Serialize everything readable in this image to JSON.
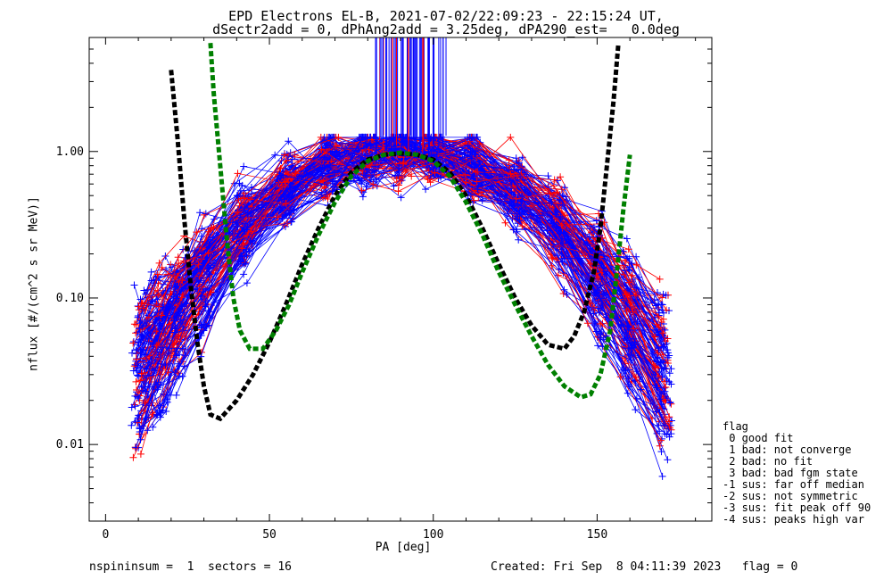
{
  "title_line1": "EPD Electrons EL-B, 2021-07-02/22:09:23 - 22:15:24 UT,",
  "title_line2": "dSectr2add = 0, dPhAng2add = 3.25deg, dPA290_est=   0.0deg",
  "footer_left": "nspininsum =  1  sectors = 16",
  "footer_right": "Created: Fri Sep  8 04:11:39 2023   flag = 0",
  "flag_legend": {
    "title": "flag",
    "items": [
      " 0 good fit",
      " 1 bad: not converge",
      " 2 bad: no fit",
      " 3 bad: bad fgm state",
      "-1 sus: far off median",
      "-2 sus: not symmetric",
      "-3 sus: fit peak off 90",
      "-4 sus: peaks high var"
    ]
  },
  "chart_data": {
    "type": "line",
    "xlabel": "PA [deg]",
    "ylabel": "nflux [#/(cm^2 s sr MeV)]",
    "xlim": [
      -5,
      185
    ],
    "ylim": [
      0.003,
      6.0
    ],
    "yscale": "log",
    "xticks": [
      0,
      50,
      100,
      150
    ],
    "xtick_labels": [
      "0",
      "50",
      "100",
      "150"
    ],
    "yticks": [
      0.01,
      0.1,
      1.0
    ],
    "ytick_labels": [
      "0.01",
      "0.10",
      "1.00"
    ],
    "grid": false,
    "colors": {
      "blue": "#0000ff",
      "red": "#ff0000",
      "black_fit": "#000000",
      "green_fit": "#00ff00"
    },
    "series": [
      {
        "color": "black",
        "style": "dotted-thick",
        "x": [
          20,
          22,
          24,
          26,
          28,
          30,
          32,
          35,
          40,
          45,
          50,
          55,
          60,
          65,
          70,
          75,
          80,
          85,
          90,
          95,
          100,
          105,
          110,
          115,
          120,
          125,
          130,
          135,
          140,
          143,
          146,
          149,
          151,
          153,
          155,
          156.5
        ],
        "y": [
          3.6,
          1.2,
          0.35,
          0.12,
          0.05,
          0.025,
          0.016,
          0.015,
          0.02,
          0.03,
          0.05,
          0.09,
          0.17,
          0.3,
          0.5,
          0.72,
          0.88,
          0.95,
          0.97,
          0.95,
          0.88,
          0.72,
          0.5,
          0.3,
          0.17,
          0.1,
          0.065,
          0.048,
          0.045,
          0.055,
          0.08,
          0.15,
          0.3,
          0.8,
          2.2,
          5.5
        ]
      },
      {
        "color": "green",
        "style": "dotted-thick",
        "x": [
          32,
          33,
          35,
          37,
          39,
          41,
          44,
          48,
          52,
          56,
          60,
          65,
          70,
          75,
          80,
          85,
          90,
          95,
          100,
          105,
          110,
          115,
          120,
          125,
          130,
          135,
          140,
          145,
          148,
          151,
          154,
          156,
          158,
          160
        ],
        "y": [
          5.5,
          2.5,
          0.8,
          0.25,
          0.1,
          0.06,
          0.045,
          0.045,
          0.06,
          0.09,
          0.15,
          0.27,
          0.45,
          0.68,
          0.86,
          0.95,
          0.98,
          0.95,
          0.86,
          0.68,
          0.45,
          0.27,
          0.15,
          0.09,
          0.055,
          0.035,
          0.025,
          0.021,
          0.022,
          0.03,
          0.06,
          0.15,
          0.4,
          0.95
        ]
      }
    ]
  }
}
